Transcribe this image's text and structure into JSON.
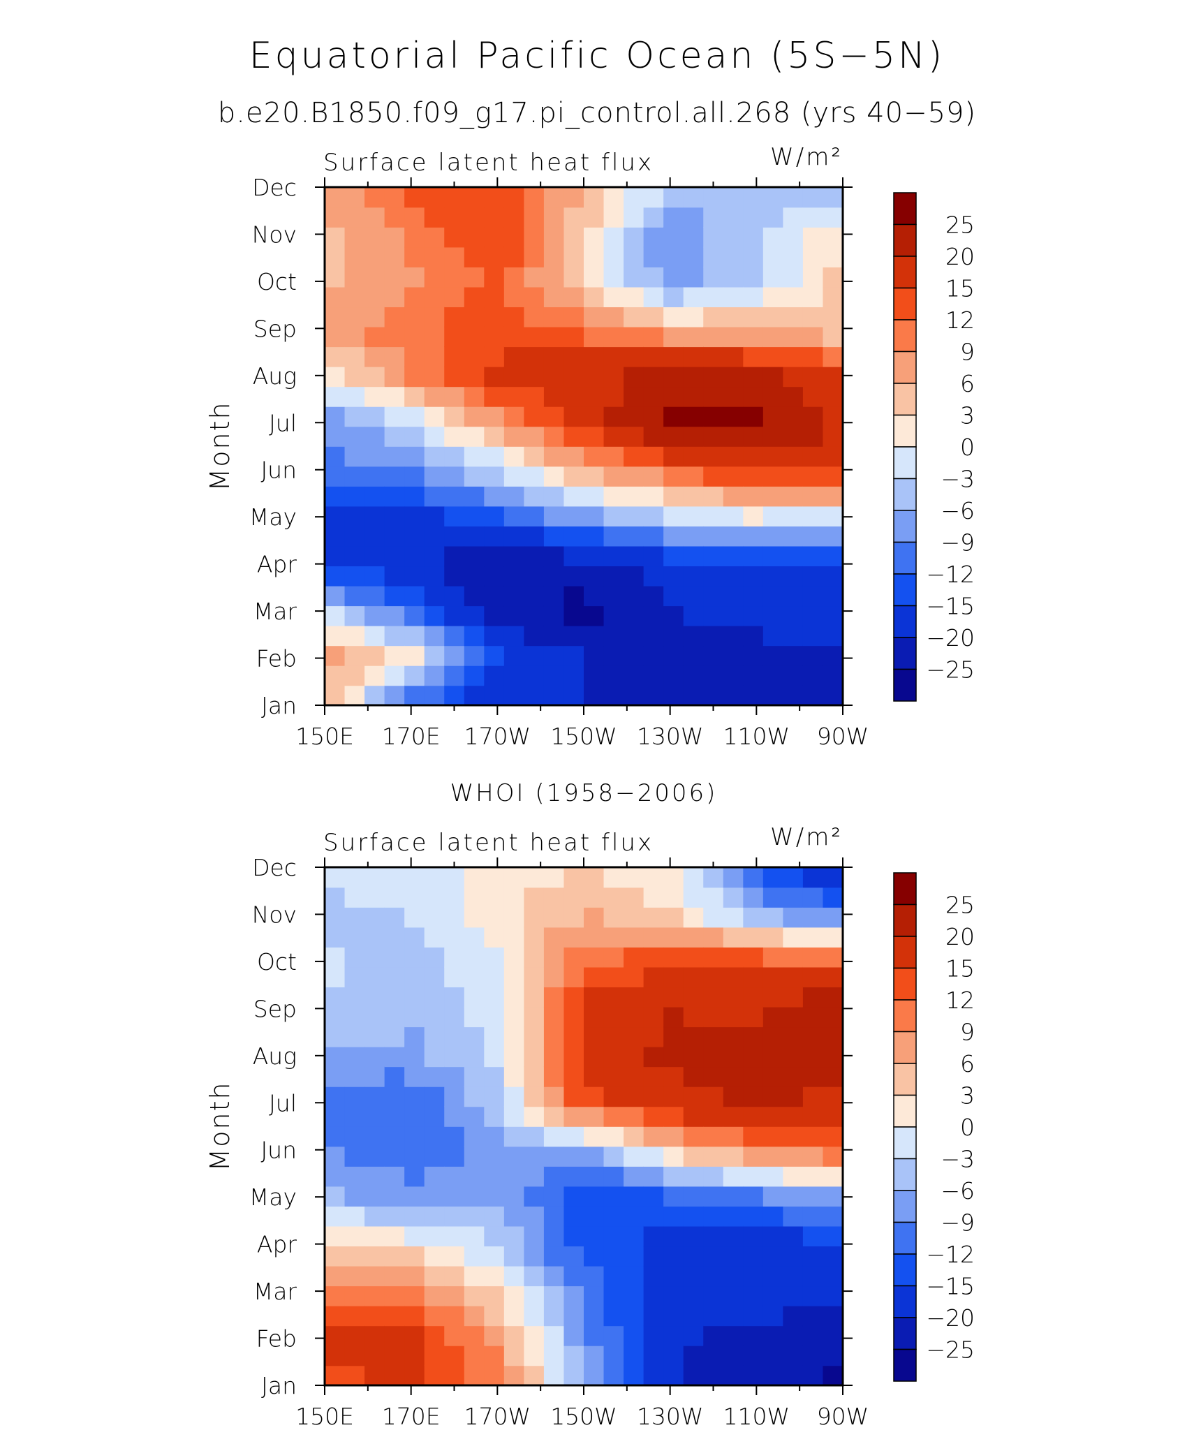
{
  "title": "Equatorial Pacific Ocean (5S−5N)",
  "subtitle": "b.e20.B1850.f09_g17.pi_control.all.268 (yrs 40−59)",
  "colorbar": {
    "levels": [
      -25,
      -20,
      -15,
      -12,
      -9,
      -6,
      -3,
      0,
      3,
      6,
      9,
      12,
      15,
      20,
      25
    ],
    "labels": [
      "25",
      "20",
      "15",
      "12",
      "9",
      "6",
      "3",
      "0",
      "−3",
      "−6",
      "−9",
      "−12",
      "−15",
      "−20",
      "−25"
    ],
    "colors": [
      "#08088f",
      "#0a1cb3",
      "#0b34d6",
      "#1451f0",
      "#3f73f2",
      "#7a9ef4",
      "#a9c3f8",
      "#d6e6fb",
      "#fde9d8",
      "#f9c3a4",
      "#f7a079",
      "#fa7a49",
      "#f24e1a",
      "#d33209",
      "#b51f04",
      "#860000"
    ]
  },
  "chart_data": [
    {
      "type": "heatmap",
      "panel_title": "",
      "left_label": "Surface latent heat flux",
      "units": "W/m²",
      "ylabel": "Month",
      "xlabel": "",
      "x_ticks": [
        "150E",
        "170E",
        "170W",
        "150W",
        "130W",
        "110W",
        "90W"
      ],
      "x": [
        150,
        170,
        190,
        210,
        230,
        250,
        270
      ],
      "y_ticks": [
        "Jan",
        "Feb",
        "Mar",
        "Apr",
        "May",
        "Jun",
        "Jul",
        "Aug",
        "Sep",
        "Oct",
        "Nov",
        "Dec"
      ],
      "values": [
        [
          4,
          -12,
          -20,
          -20,
          -22,
          -23,
          -26
        ],
        [
          9,
          2,
          -15,
          -20,
          -23,
          -22,
          -22
        ],
        [
          -3,
          -12,
          -21,
          -27,
          -20,
          -18,
          -17
        ],
        [
          -15,
          -18,
          -26,
          -22,
          -17,
          -15,
          -15
        ],
        [
          -16,
          -17,
          -13,
          -7,
          -3,
          0,
          -2
        ],
        [
          -11,
          -8,
          -3,
          6,
          12,
          17,
          16
        ],
        [
          -9,
          -2,
          8,
          17,
          26,
          27,
          19
        ],
        [
          1,
          9,
          16,
          18,
          22,
          21,
          16
        ],
        [
          8,
          11,
          14,
          11,
          6,
          6,
          3
        ],
        [
          5,
          8,
          13,
          3,
          -8,
          -3,
          4
        ],
        [
          5,
          10,
          15,
          4,
          -9,
          -3,
          2
        ],
        [
          6,
          13,
          14,
          6,
          -3,
          -6,
          -6
        ]
      ]
    },
    {
      "type": "heatmap",
      "panel_title": "WHOI (1958−2006)",
      "left_label": "Surface latent heat flux",
      "units": "W/m²",
      "ylabel": "Month",
      "xlabel": "",
      "x_ticks": [
        "150E",
        "170E",
        "170W",
        "150W",
        "130W",
        "110W",
        "90W"
      ],
      "x": [
        150,
        170,
        190,
        210,
        230,
        250,
        270
      ],
      "y_ticks": [
        "Jan",
        "Feb",
        "Mar",
        "Apr",
        "May",
        "Jun",
        "Jul",
        "Aug",
        "Sep",
        "Oct",
        "Nov",
        "Dec"
      ],
      "values": [
        [
          13,
          16,
          10,
          -5,
          -20,
          -23,
          -27
        ],
        [
          17,
          16,
          8,
          -8,
          -19,
          -22,
          -23
        ],
        [
          11,
          10,
          3,
          -10,
          -17,
          -17,
          -18
        ],
        [
          4,
          1,
          -3,
          -14,
          -16,
          -18,
          -15
        ],
        [
          -5,
          -8,
          -6,
          -15,
          -12,
          -10,
          -6
        ],
        [
          -9,
          -11,
          -8,
          -7,
          4,
          10,
          12
        ],
        [
          -12,
          -12,
          -4,
          14,
          18,
          21,
          19
        ],
        [
          -6,
          -7,
          -2,
          17,
          21,
          21,
          22
        ],
        [
          -3,
          -5,
          -2,
          16,
          20,
          19,
          24
        ],
        [
          -2,
          -5,
          0,
          12,
          14,
          14,
          13
        ],
        [
          -4,
          -3,
          2,
          6,
          4,
          -6,
          -9
        ],
        [
          -2,
          -1,
          1,
          3,
          0,
          -12,
          -20
        ]
      ]
    }
  ]
}
